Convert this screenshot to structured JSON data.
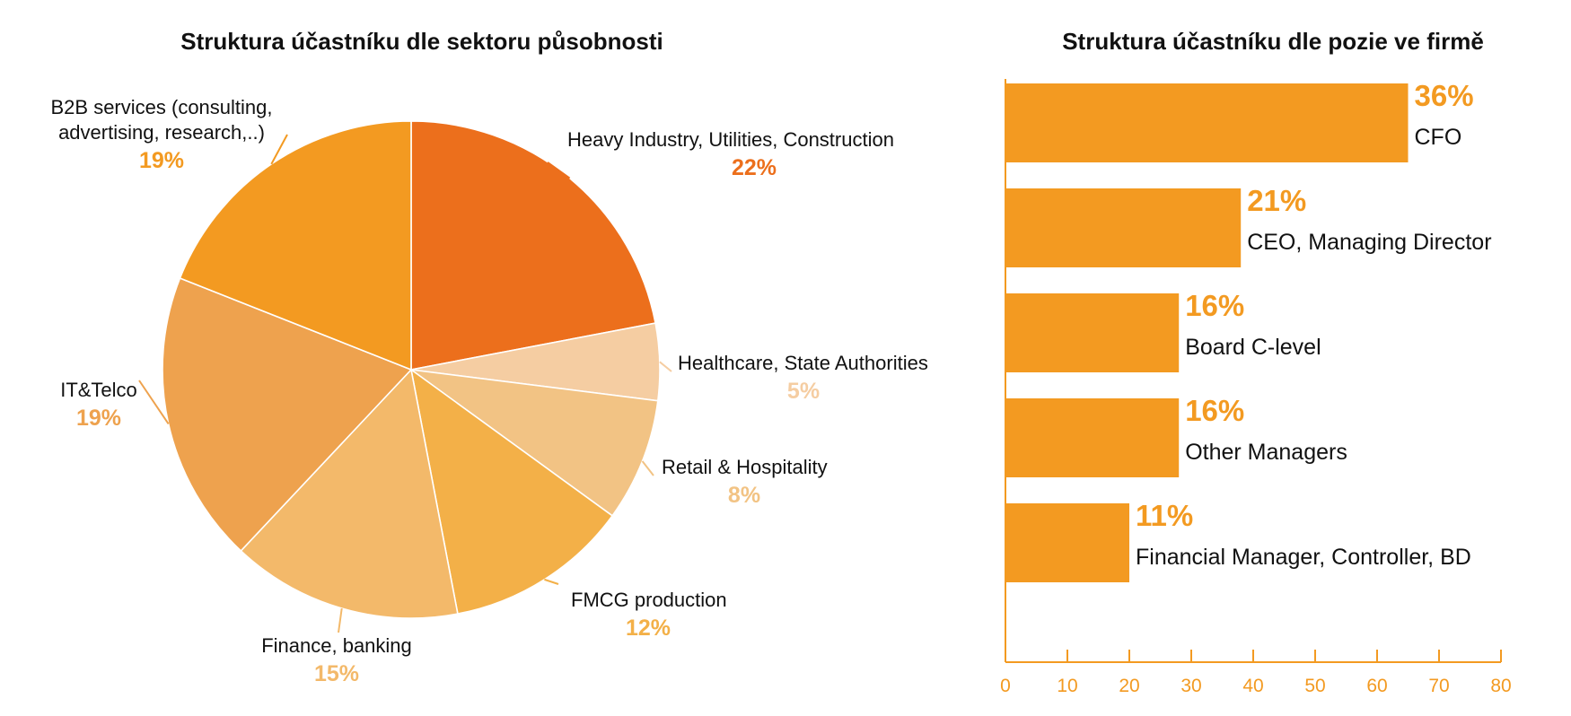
{
  "chart_data": [
    {
      "type": "pie",
      "title": "Struktura účastníku dle sektoru působnosti",
      "slices": [
        {
          "lines": [
            "Heavy Industry, Utilities, Construction"
          ],
          "value": 22,
          "value_label": "22%",
          "color": "#ec6f1c"
        },
        {
          "lines": [
            "Healthcare, State Authorities"
          ],
          "value": 5,
          "value_label": "5%",
          "color": "#f5cda2"
        },
        {
          "lines": [
            "Retail & Hospitality"
          ],
          "value": 8,
          "value_label": "8%",
          "color": "#f2c384"
        },
        {
          "lines": [
            "FMCG production"
          ],
          "value": 12,
          "value_label": "12%",
          "color": "#f3b048"
        },
        {
          "lines": [
            "Finance, banking"
          ],
          "value": 15,
          "value_label": "15%",
          "color": "#f3b96a"
        },
        {
          "lines": [
            "IT&Telco"
          ],
          "value": 19,
          "value_label": "19%",
          "color": "#eea24e"
        },
        {
          "lines": [
            "B2B services (consulting,",
            "advertising, research,..)"
          ],
          "value": 19,
          "value_label": "19%",
          "color": "#f39a21"
        }
      ]
    },
    {
      "type": "bar",
      "orientation": "horizontal",
      "title": "Struktura účastníku dle pozie ve firmě",
      "bar_color": "#f39a21",
      "label_color": "#f39a21",
      "categories": [
        "CFO",
        "CEO, Managing Director",
        "Board C-level",
        "Other Managers",
        "Financial Manager, Controller, BD"
      ],
      "values": [
        65,
        38,
        28,
        28,
        20
      ],
      "value_labels": [
        "36%",
        "21%",
        "16%",
        "16%",
        "11%"
      ],
      "xlim": [
        0,
        80
      ],
      "xticks": [
        "0",
        "10",
        "20",
        "30",
        "40",
        "50",
        "60",
        "70",
        "80"
      ],
      "grid": false
    }
  ]
}
